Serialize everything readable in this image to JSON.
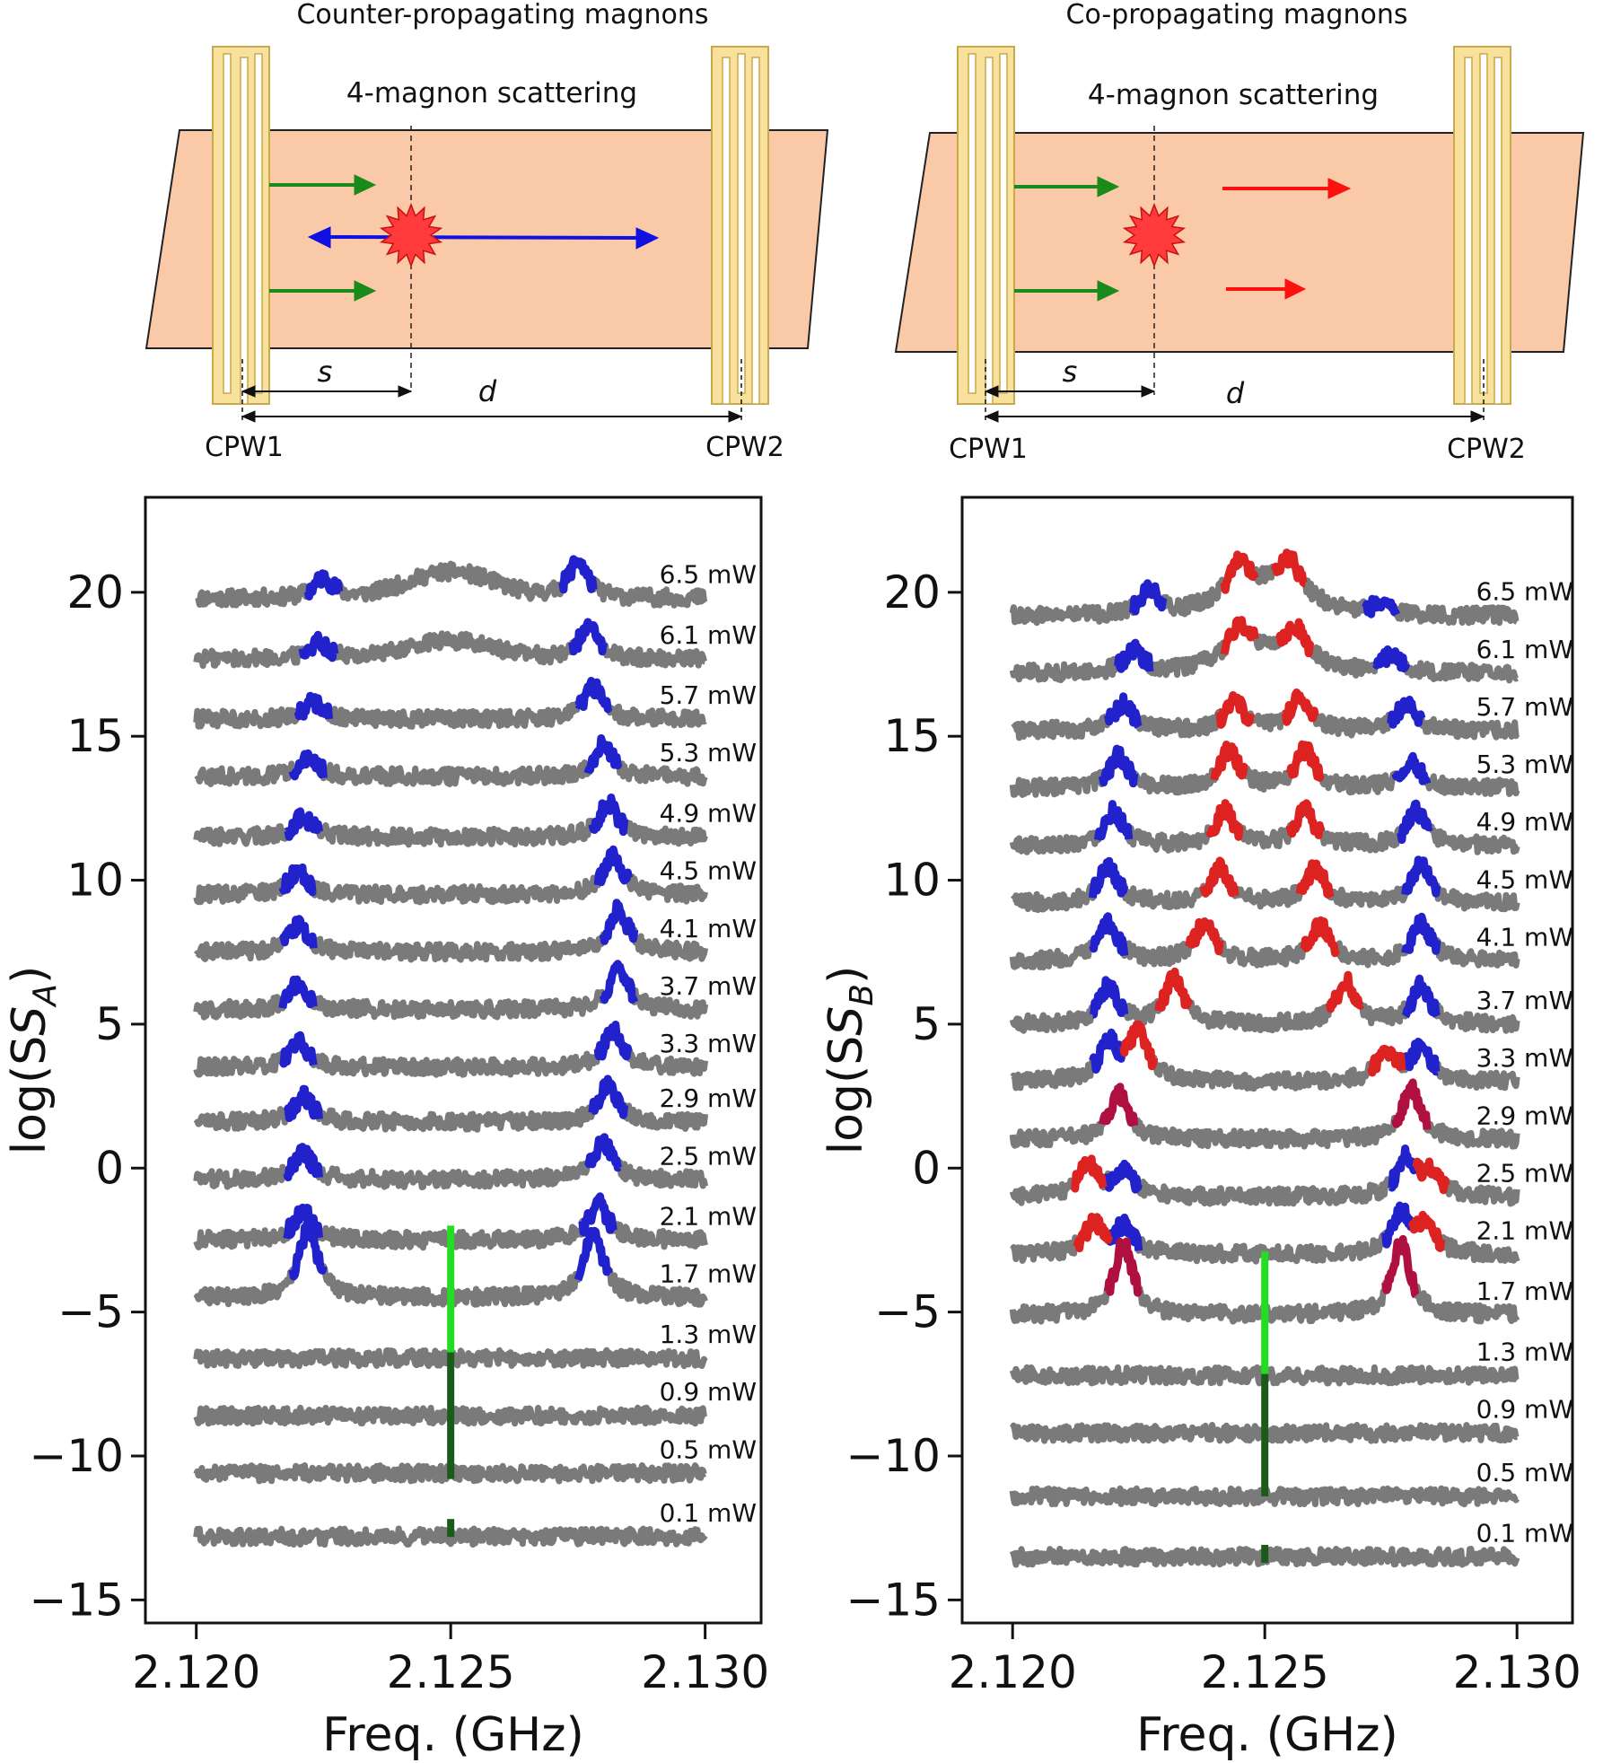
{
  "diagrams": [
    {
      "title": "Counter-propagating magnons",
      "scatter_label": "4-magnon scattering",
      "cpw1": "CPW1",
      "cpw2": "CPW2",
      "s_label": "s",
      "d_label": "d",
      "colors": {
        "film": "#f9c9a8",
        "cpw": "#f8e19c",
        "input_arrows": "#1a8a1a",
        "scattered": "#1010e0",
        "star": "#ff3b3b"
      }
    },
    {
      "title": "Co-propagating magnons",
      "scatter_label": "4-magnon scattering",
      "cpw1": "CPW1",
      "cpw2": "CPW2",
      "s_label": "s",
      "d_label": "d",
      "colors": {
        "film": "#f9c9a8",
        "cpw": "#f8e19c",
        "input_arrows": "#1a8a1a",
        "scattered": "#ff1010",
        "star": "#ff3b3b"
      }
    }
  ],
  "chart_data": [
    {
      "type": "line",
      "xlabel": "Freq. (GHz)",
      "ylabel_main": "log(S",
      "ylabel_sub": "A",
      "xlim": [
        2.119,
        2.1311
      ],
      "ylim": [
        -15.8,
        23.3
      ],
      "xticks": [
        "2.120",
        "2.125",
        "2.130"
      ],
      "xtick_values": [
        2.12,
        2.125,
        2.13
      ],
      "yticks": [
        "20",
        "15",
        "10",
        "5",
        "0",
        "−10",
        "−15"
      ],
      "ytick_values": [
        20,
        15,
        10,
        5,
        0,
        -10,
        -15
      ],
      "ytick_minus5": "−5",
      "grid": false,
      "colors": {
        "trace": "#7a7a7a",
        "peak": "#2222cc",
        "pump": "#22dd22",
        "pump_dark": "#1a5a1a"
      },
      "series": [
        {
          "name": "6.5 mW",
          "offset": 19.8,
          "peaks": [
            [
              2.1225,
              0.7
            ],
            [
              2.1275,
              1.3
            ]
          ],
          "broad": [
            [
              2.125,
              0.9
            ]
          ]
        },
        {
          "name": "6.1 mW",
          "offset": 17.7,
          "peaks": [
            [
              2.1224,
              0.6
            ],
            [
              2.1277,
              1.1
            ]
          ],
          "broad": [
            [
              2.125,
              0.6
            ]
          ]
        },
        {
          "name": "5.7 mW",
          "offset": 15.6,
          "peaks": [
            [
              2.1223,
              0.6
            ],
            [
              2.1278,
              1.1
            ]
          ]
        },
        {
          "name": "5.3 mW",
          "offset": 13.6,
          "peaks": [
            [
              2.1222,
              0.6
            ],
            [
              2.128,
              1.1
            ]
          ]
        },
        {
          "name": "4.9 mW",
          "offset": 11.5,
          "peaks": [
            [
              2.1221,
              0.7
            ],
            [
              2.1281,
              1.2
            ]
          ]
        },
        {
          "name": "4.5 mW",
          "offset": 9.5,
          "peaks": [
            [
              2.122,
              0.8
            ],
            [
              2.1282,
              1.4
            ]
          ]
        },
        {
          "name": "4.1 mW",
          "offset": 7.5,
          "peaks": [
            [
              2.122,
              0.9
            ],
            [
              2.1283,
              1.5
            ]
          ]
        },
        {
          "name": "3.7 mW",
          "offset": 5.5,
          "peaks": [
            [
              2.122,
              0.9
            ],
            [
              2.1283,
              1.5
            ]
          ]
        },
        {
          "name": "3.3 mW",
          "offset": 3.5,
          "peaks": [
            [
              2.122,
              0.9
            ],
            [
              2.1282,
              1.3
            ]
          ]
        },
        {
          "name": "2.9 mW",
          "offset": 1.6,
          "peaks": [
            [
              2.1221,
              0.9
            ],
            [
              2.1281,
              1.3
            ]
          ]
        },
        {
          "name": "2.5 mW",
          "offset": -0.4,
          "peaks": [
            [
              2.1221,
              0.9
            ],
            [
              2.128,
              1.3
            ]
          ]
        },
        {
          "name": "2.1 mW",
          "offset": -2.5,
          "peaks": [
            [
              2.1221,
              1.0
            ],
            [
              2.1279,
              1.3
            ]
          ]
        },
        {
          "name": "1.7 mW",
          "offset": -4.5,
          "peaks": [
            [
              2.1222,
              2.4
            ],
            [
              2.1278,
              2.4
            ]
          ]
        },
        {
          "name": "1.3 mW",
          "offset": -6.6,
          "peaks": []
        },
        {
          "name": "0.9 mW",
          "offset": -8.6,
          "peaks": []
        },
        {
          "name": "0.5 mW",
          "offset": -10.6,
          "peaks": []
        },
        {
          "name": "0.1 mW",
          "offset": -12.8,
          "peaks": []
        }
      ],
      "pump_line": {
        "x": 2.125,
        "y_top": -2.0,
        "y_bottom": -10.8,
        "dot_y": -12.5
      }
    },
    {
      "type": "line",
      "xlabel": "Freq. (GHz)",
      "ylabel_main": "log(S",
      "ylabel_sub": "B",
      "xlim": [
        2.119,
        2.1311
      ],
      "ylim": [
        -15.8,
        23.3
      ],
      "xticks": [
        "2.120",
        "2.125",
        "2.130"
      ],
      "xtick_values": [
        2.12,
        2.125,
        2.13
      ],
      "yticks": [
        "20",
        "15",
        "10",
        "5",
        "0",
        "−10",
        "−15"
      ],
      "ytick_values": [
        20,
        15,
        10,
        5,
        0,
        -10,
        -15
      ],
      "ytick_minus5": "−5",
      "grid": false,
      "colors": {
        "trace": "#7a7a7a",
        "peak": "#2222cc",
        "side": "#dd2222",
        "side_dark": "#b01040",
        "pump": "#22dd22",
        "pump_dark": "#1a5a1a"
      },
      "series": [
        {
          "name": "6.5 mW",
          "offset": 19.2,
          "peaks": [
            [
              2.1227,
              0.9
            ],
            [
              2.1273,
              0.4
            ]
          ],
          "side": [
            [
              2.1245,
              1.1
            ],
            [
              2.1255,
              1.1
            ]
          ],
          "broad": [
            [
              2.125,
              1.0
            ]
          ]
        },
        {
          "name": "6.1 mW",
          "offset": 17.2,
          "peaks": [
            [
              2.1224,
              0.8
            ],
            [
              2.1275,
              0.6
            ]
          ],
          "side": [
            [
              2.1245,
              1.0
            ],
            [
              2.1256,
              1.0
            ]
          ],
          "broad": [
            [
              2.125,
              0.8
            ]
          ]
        },
        {
          "name": "5.7 mW",
          "offset": 15.2,
          "peaks": [
            [
              2.1222,
              0.9
            ],
            [
              2.1278,
              0.9
            ]
          ],
          "side": [
            [
              2.1244,
              1.0
            ],
            [
              2.1257,
              1.2
            ]
          ]
        },
        {
          "name": "5.3 mW",
          "offset": 13.2,
          "peaks": [
            [
              2.1221,
              1.1
            ],
            [
              2.1279,
              0.9
            ]
          ],
          "side": [
            [
              2.1243,
              1.3
            ],
            [
              2.1258,
              1.3
            ]
          ]
        },
        {
          "name": "4.9 mW",
          "offset": 11.2,
          "peaks": [
            [
              2.122,
              1.2
            ],
            [
              2.128,
              1.2
            ]
          ],
          "side": [
            [
              2.1242,
              1.2
            ],
            [
              2.1258,
              1.2
            ]
          ]
        },
        {
          "name": "4.5 mW",
          "offset": 9.2,
          "peaks": [
            [
              2.1219,
              1.3
            ],
            [
              2.1281,
              1.3
            ]
          ],
          "side": [
            [
              2.1241,
              1.2
            ],
            [
              2.126,
              1.2
            ]
          ]
        },
        {
          "name": "4.1 mW",
          "offset": 7.2,
          "peaks": [
            [
              2.1219,
              1.3
            ],
            [
              2.1281,
              1.3
            ]
          ],
          "side": [
            [
              2.1238,
              1.3
            ],
            [
              2.1261,
              1.2
            ]
          ]
        },
        {
          "name": "3.7 mW",
          "offset": 5.0,
          "peaks": [
            [
              2.1219,
              1.3
            ],
            [
              2.1281,
              1.3
            ]
          ],
          "side": [
            [
              2.1232,
              1.6
            ],
            [
              2.1266,
              1.5
            ]
          ]
        },
        {
          "name": "3.3 mW",
          "offset": 3.0,
          "peaks": [
            [
              2.1219,
              1.3
            ],
            [
              2.1281,
              1.2
            ]
          ],
          "side": [
            [
              2.1225,
              1.7
            ],
            [
              2.1274,
              1.0
            ]
          ]
        },
        {
          "name": "2.9 mW",
          "offset": 1.0,
          "peaks": [],
          "side_dark": [
            [
              2.1221,
              1.6
            ],
            [
              2.1279,
              1.8
            ]
          ]
        },
        {
          "name": "2.5 mW",
          "offset": -1.0,
          "peaks": [
            [
              2.1222,
              0.9
            ],
            [
              2.1278,
              1.3
            ]
          ],
          "side": [
            [
              2.1215,
              1.1
            ],
            [
              2.1283,
              0.8
            ]
          ]
        },
        {
          "name": "2.1 mW",
          "offset": -3.0,
          "peaks": [
            [
              2.1222,
              0.9
            ],
            [
              2.1277,
              1.4
            ]
          ],
          "side": [
            [
              2.1216,
              1.0
            ],
            [
              2.1282,
              0.9
            ]
          ]
        },
        {
          "name": "1.7 mW",
          "offset": -5.1,
          "peaks": [],
          "side_dark": [
            [
              2.1222,
              2.5
            ],
            [
              2.1277,
              2.5
            ]
          ]
        },
        {
          "name": "1.3 mW",
          "offset": -7.2,
          "peaks": []
        },
        {
          "name": "0.9 mW",
          "offset": -9.2,
          "peaks": []
        },
        {
          "name": "0.5 mW",
          "offset": -11.4,
          "peaks": []
        },
        {
          "name": "0.1 mW",
          "offset": -13.5,
          "peaks": []
        }
      ],
      "pump_line": {
        "x": 2.125,
        "y_top": -2.9,
        "y_bottom": -11.4,
        "dot_y": -13.4
      }
    }
  ]
}
